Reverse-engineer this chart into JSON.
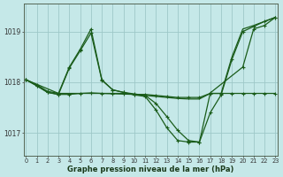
{
  "xlabel": "Graphe pression niveau de la mer (hPa)",
  "bg_color": "#c5e8e8",
  "grid_color": "#9ec8c8",
  "line_color": "#1a5c1a",
  "ylim": [
    1016.55,
    1019.55
  ],
  "xlim": [
    -0.2,
    23.2
  ],
  "yticks": [
    1017,
    1018,
    1019
  ],
  "xticks": [
    0,
    1,
    2,
    3,
    4,
    5,
    6,
    7,
    8,
    9,
    10,
    11,
    12,
    13,
    14,
    15,
    16,
    17,
    18,
    19,
    20,
    21,
    22,
    23
  ],
  "series": [
    {
      "x": [
        0,
        1,
        2,
        3,
        4,
        5,
        6,
        7,
        8,
        9,
        10,
        11,
        12,
        13,
        14,
        15,
        16,
        17,
        18,
        19,
        20,
        21,
        22,
        23
      ],
      "y": [
        1018.05,
        1017.95,
        1017.82,
        1017.78,
        1018.3,
        1018.65,
        1019.05,
        1018.05,
        1017.85,
        1017.8,
        1017.75,
        1017.72,
        1017.45,
        1017.1,
        1016.85,
        1016.82,
        1016.82,
        1017.4,
        1017.75,
        1018.45,
        1019.0,
        1019.1,
        1019.2,
        1019.28
      ],
      "marker": true
    },
    {
      "x": [
        0,
        3,
        7,
        10,
        11,
        12,
        13,
        14,
        15,
        16,
        17,
        18,
        19,
        20,
        21,
        22,
        23
      ],
      "y": [
        1018.05,
        1017.78,
        1017.78,
        1017.76,
        1017.74,
        1017.72,
        1017.7,
        1017.68,
        1017.67,
        1017.67,
        1017.78,
        1017.78,
        1018.5,
        1019.05,
        1019.12,
        1019.2,
        1019.28
      ],
      "marker": false
    },
    {
      "x": [
        0,
        1,
        2,
        3,
        4,
        5,
        6,
        7,
        8,
        9,
        10,
        11,
        12,
        13,
        14,
        15,
        16,
        17,
        18,
        19,
        20,
        21,
        22,
        23
      ],
      "y": [
        1018.05,
        1017.93,
        1017.8,
        1017.76,
        1017.76,
        1017.78,
        1017.79,
        1017.78,
        1017.78,
        1017.78,
        1017.76,
        1017.76,
        1017.74,
        1017.72,
        1017.7,
        1017.7,
        1017.7,
        1017.78,
        1017.78,
        1017.78,
        1017.78,
        1017.78,
        1017.78,
        1017.78
      ],
      "marker": true
    },
    {
      "x": [
        0,
        1,
        2,
        3,
        4,
        5,
        6,
        7,
        8,
        9,
        10,
        11,
        12,
        13,
        14,
        15,
        16,
        17,
        20,
        21,
        22,
        23
      ],
      "y": [
        1018.05,
        1017.93,
        1017.8,
        1017.76,
        1018.28,
        1018.62,
        1018.97,
        1018.04,
        1017.85,
        1017.8,
        1017.77,
        1017.74,
        1017.58,
        1017.32,
        1017.05,
        1016.85,
        1016.82,
        1017.79,
        1018.3,
        1019.05,
        1019.12,
        1019.28
      ],
      "marker": true
    }
  ]
}
